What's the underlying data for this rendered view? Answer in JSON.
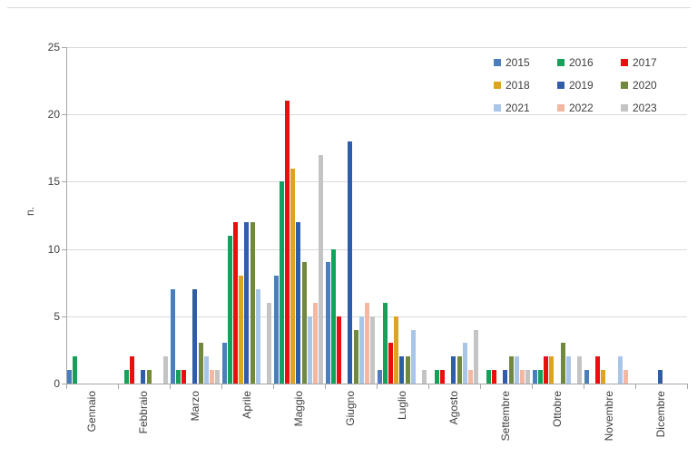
{
  "chart_data": {
    "type": "bar",
    "title": "",
    "xlabel": "",
    "ylabel": "n.",
    "ylim": [
      0,
      25
    ],
    "yticks": [
      0,
      5,
      10,
      15,
      20,
      25
    ],
    "grid": true,
    "legend_position": "top-right",
    "categories": [
      "Gennaio",
      "Febbraio",
      "Marzo",
      "Aprile",
      "Maggio",
      "Giugno",
      "Luglio",
      "Agosto",
      "Settembre",
      "Ottobre",
      "Novembre",
      "Dicembre"
    ],
    "series": [
      {
        "name": "2015",
        "color": "#4A7EBD",
        "values": [
          1,
          0,
          7,
          3,
          8,
          9,
          1,
          0,
          0,
          1,
          1,
          0
        ]
      },
      {
        "name": "2016",
        "color": "#16A15A",
        "values": [
          2,
          1,
          1,
          11,
          15,
          10,
          6,
          1,
          1,
          1,
          0,
          0
        ]
      },
      {
        "name": "2017",
        "color": "#EB0E0E",
        "values": [
          0,
          2,
          1,
          12,
          21,
          5,
          3,
          1,
          1,
          2,
          2,
          0
        ]
      },
      {
        "name": "2018",
        "color": "#DCA420",
        "values": [
          0,
          0,
          0,
          8,
          16,
          0,
          5,
          0,
          0,
          2,
          1,
          0
        ]
      },
      {
        "name": "2019",
        "color": "#2F5EA8",
        "values": [
          0,
          1,
          7,
          12,
          12,
          18,
          2,
          2,
          1,
          0,
          0,
          1
        ]
      },
      {
        "name": "2020",
        "color": "#71893F",
        "values": [
          0,
          1,
          3,
          12,
          9,
          4,
          2,
          2,
          2,
          3,
          0,
          0
        ]
      },
      {
        "name": "2021",
        "color": "#A9C5E8",
        "values": [
          0,
          0,
          2,
          7,
          5,
          5,
          4,
          3,
          2,
          2,
          2,
          0
        ]
      },
      {
        "name": "2022",
        "color": "#F2B8A2",
        "values": [
          0,
          0,
          1,
          0,
          6,
          6,
          0,
          1,
          1,
          0,
          1,
          0
        ]
      },
      {
        "name": "2023",
        "color": "#C4C4C4",
        "values": [
          0,
          2,
          1,
          6,
          17,
          5,
          1,
          4,
          1,
          2,
          0,
          0
        ]
      }
    ]
  }
}
